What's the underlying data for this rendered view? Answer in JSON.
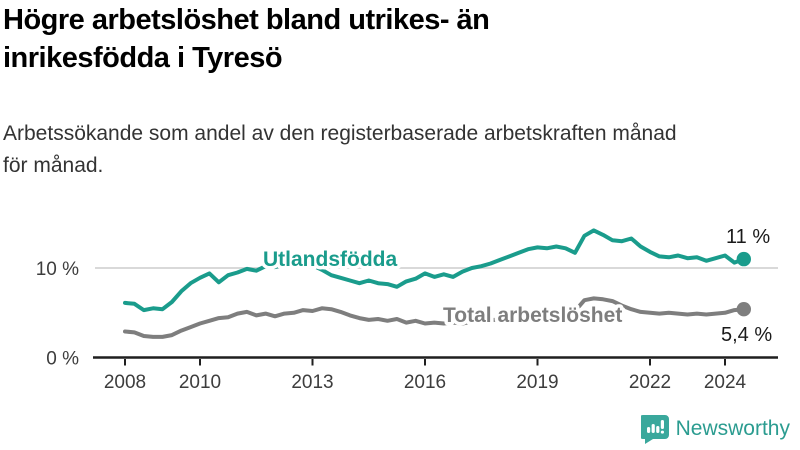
{
  "header": {
    "title": "Högre arbetslöshet bland utrikes- än inrikesfödda i Tyresö",
    "title_lines": [
      "Högre arbetslöshet bland utrikes- än",
      "inrikesfödda i Tyresö"
    ],
    "subtitle_lines": [
      "Arbetssökande som andel av den registerbaserade arbetskraften månad",
      "för månad."
    ]
  },
  "chart_data": {
    "type": "line",
    "title": "Högre arbetslöshet bland utrikes- än inrikesfödda i Tyresö",
    "subtitle": "Arbetssökande som andel av den registerbaserade arbetskraften månad för månad.",
    "x_start": 2008,
    "x_step_years": 0.25,
    "x_end": 2024.5,
    "x_ticks": [
      2008,
      2010,
      2013,
      2016,
      2019,
      2022,
      2024
    ],
    "y_ticks": [
      {
        "value": 10,
        "label": "10 %"
      },
      {
        "value": 0,
        "label": "0 %"
      }
    ],
    "ylim": [
      0,
      16
    ],
    "unit": "%",
    "grid": "single-horizontal-line-at-10",
    "legend_position": "inline-labels-on-lines",
    "series": [
      {
        "name": "Utlandsfödda",
        "color": "#1a9c8c",
        "end_label": "11 %",
        "end_value": 11,
        "values": [
          6.1,
          6.0,
          5.3,
          5.5,
          5.4,
          6.2,
          7.4,
          8.3,
          8.9,
          9.4,
          8.4,
          9.2,
          9.5,
          9.9,
          9.7,
          10.2,
          10.1,
          10.4,
          10.2,
          10.6,
          10.3,
          9.8,
          9.2,
          8.9,
          8.6,
          8.3,
          8.6,
          8.3,
          8.2,
          7.9,
          8.5,
          8.8,
          9.4,
          9.0,
          9.3,
          9.0,
          9.6,
          10.0,
          10.2,
          10.5,
          10.9,
          11.3,
          11.7,
          12.1,
          12.3,
          12.2,
          12.4,
          12.2,
          11.7,
          13.6,
          14.2,
          13.7,
          13.1,
          13.0,
          13.3,
          12.4,
          11.8,
          11.3,
          11.2,
          11.4,
          11.1,
          11.2,
          10.8,
          11.1,
          11.4,
          10.6,
          11.0
        ]
      },
      {
        "name": "Total arbetslöshet",
        "color": "#7e7e7e",
        "end_label": "5,4 %",
        "end_value": 5.4,
        "values": [
          2.9,
          2.8,
          2.4,
          2.3,
          2.3,
          2.5,
          3.0,
          3.4,
          3.8,
          4.1,
          4.4,
          4.5,
          4.9,
          5.1,
          4.7,
          4.9,
          4.6,
          4.9,
          5.0,
          5.3,
          5.2,
          5.5,
          5.4,
          5.1,
          4.7,
          4.4,
          4.2,
          4.3,
          4.1,
          4.3,
          3.9,
          4.1,
          3.8,
          3.9,
          3.8,
          3.9,
          3.8,
          4.0,
          4.1,
          4.2,
          4.2,
          4.3,
          4.4,
          4.5,
          4.5,
          4.6,
          4.7,
          4.9,
          5.2,
          6.4,
          6.6,
          6.5,
          6.3,
          5.8,
          5.4,
          5.1,
          5.0,
          4.9,
          5.0,
          4.9,
          4.8,
          4.9,
          4.8,
          4.9,
          5.0,
          5.3,
          5.4
        ]
      }
    ]
  },
  "footer": {
    "brand": "Newsworthy",
    "logo_icon": "bar-chart-speech-bubble-icon",
    "brand_color": "#2b9c90",
    "icon_color": "#3aa89c"
  },
  "colors": {
    "accent_teal": "#1a9c8c",
    "line_gray": "#7e7e7e",
    "gridline": "#d9d9d9",
    "axis": "#1f1f1f",
    "axis_label": "#3d3d3d",
    "value_label": "#1a1a1a"
  }
}
